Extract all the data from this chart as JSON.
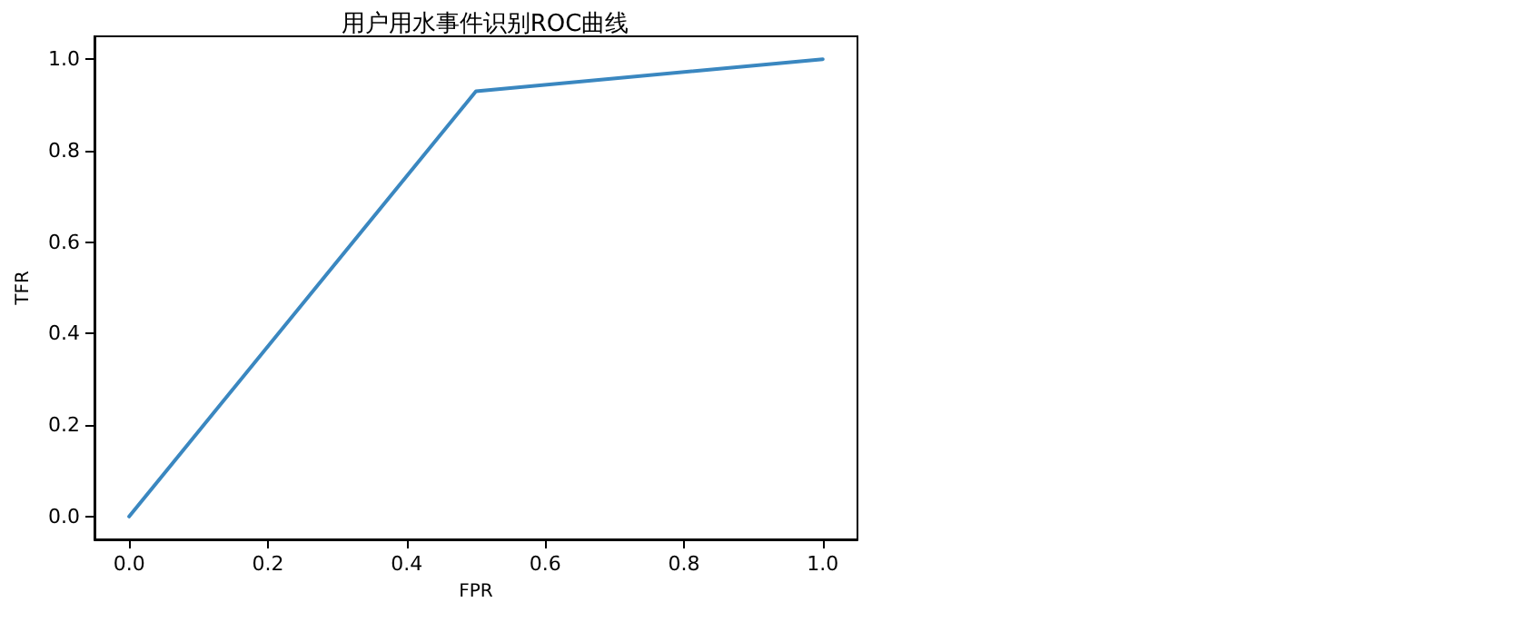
{
  "chart_data": {
    "type": "line",
    "title": "用户用水事件识别ROC曲线",
    "xlabel": "FPR",
    "ylabel": "TFR",
    "x": [
      0,
      0.5,
      1
    ],
    "series": [
      {
        "color": "#3a87c0",
        "values": [
          0,
          0.93,
          1
        ]
      }
    ],
    "xlim": [
      -0.05,
      1.05
    ],
    "ylim": [
      -0.05,
      1.05
    ],
    "xticks": [
      {
        "value": 0,
        "label": "0.0"
      },
      {
        "value": 0.2,
        "label": "0.2"
      },
      {
        "value": 0.4,
        "label": "0.4"
      },
      {
        "value": 0.6,
        "label": "0.6"
      },
      {
        "value": 0.8,
        "label": "0.8"
      },
      {
        "value": 1,
        "label": "1.0"
      }
    ],
    "yticks": [
      {
        "value": 0,
        "label": "0.0"
      },
      {
        "value": 0.2,
        "label": "0.2"
      },
      {
        "value": 0.4,
        "label": "0.4"
      },
      {
        "value": 0.6,
        "label": "0.6"
      },
      {
        "value": 0.8,
        "label": "0.8"
      },
      {
        "value": 1,
        "label": "1.0"
      }
    ],
    "grid": false,
    "marker": "none",
    "line_style": "solid"
  }
}
